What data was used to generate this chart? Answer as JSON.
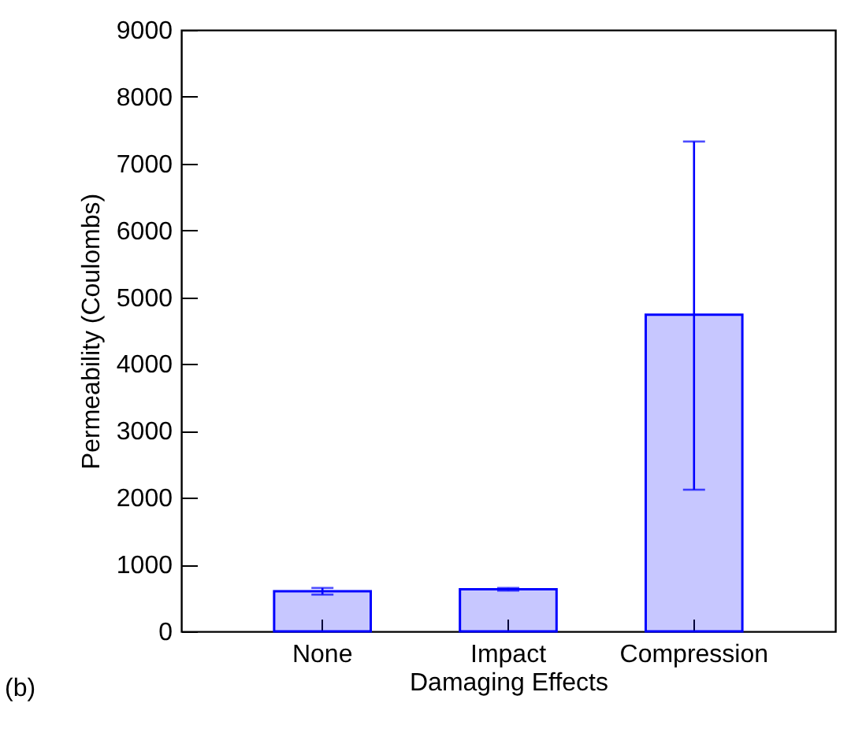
{
  "chart_data": {
    "type": "bar",
    "xlabel": "Damaging Effects",
    "ylabel": "Permeability (Coulombs)",
    "categories": [
      "None",
      "Impact",
      "Compression"
    ],
    "values": [
      600,
      630,
      4740
    ],
    "errors": [
      50,
      20,
      [
        2120,
        7330
      ]
    ],
    "color": "#0000ff",
    "ylim": [
      0,
      9000
    ],
    "yticks": [
      0,
      1000,
      2000,
      3000,
      4000,
      5000,
      6000,
      7000,
      8000,
      9000
    ],
    "annotations": [
      "(b)"
    ]
  }
}
